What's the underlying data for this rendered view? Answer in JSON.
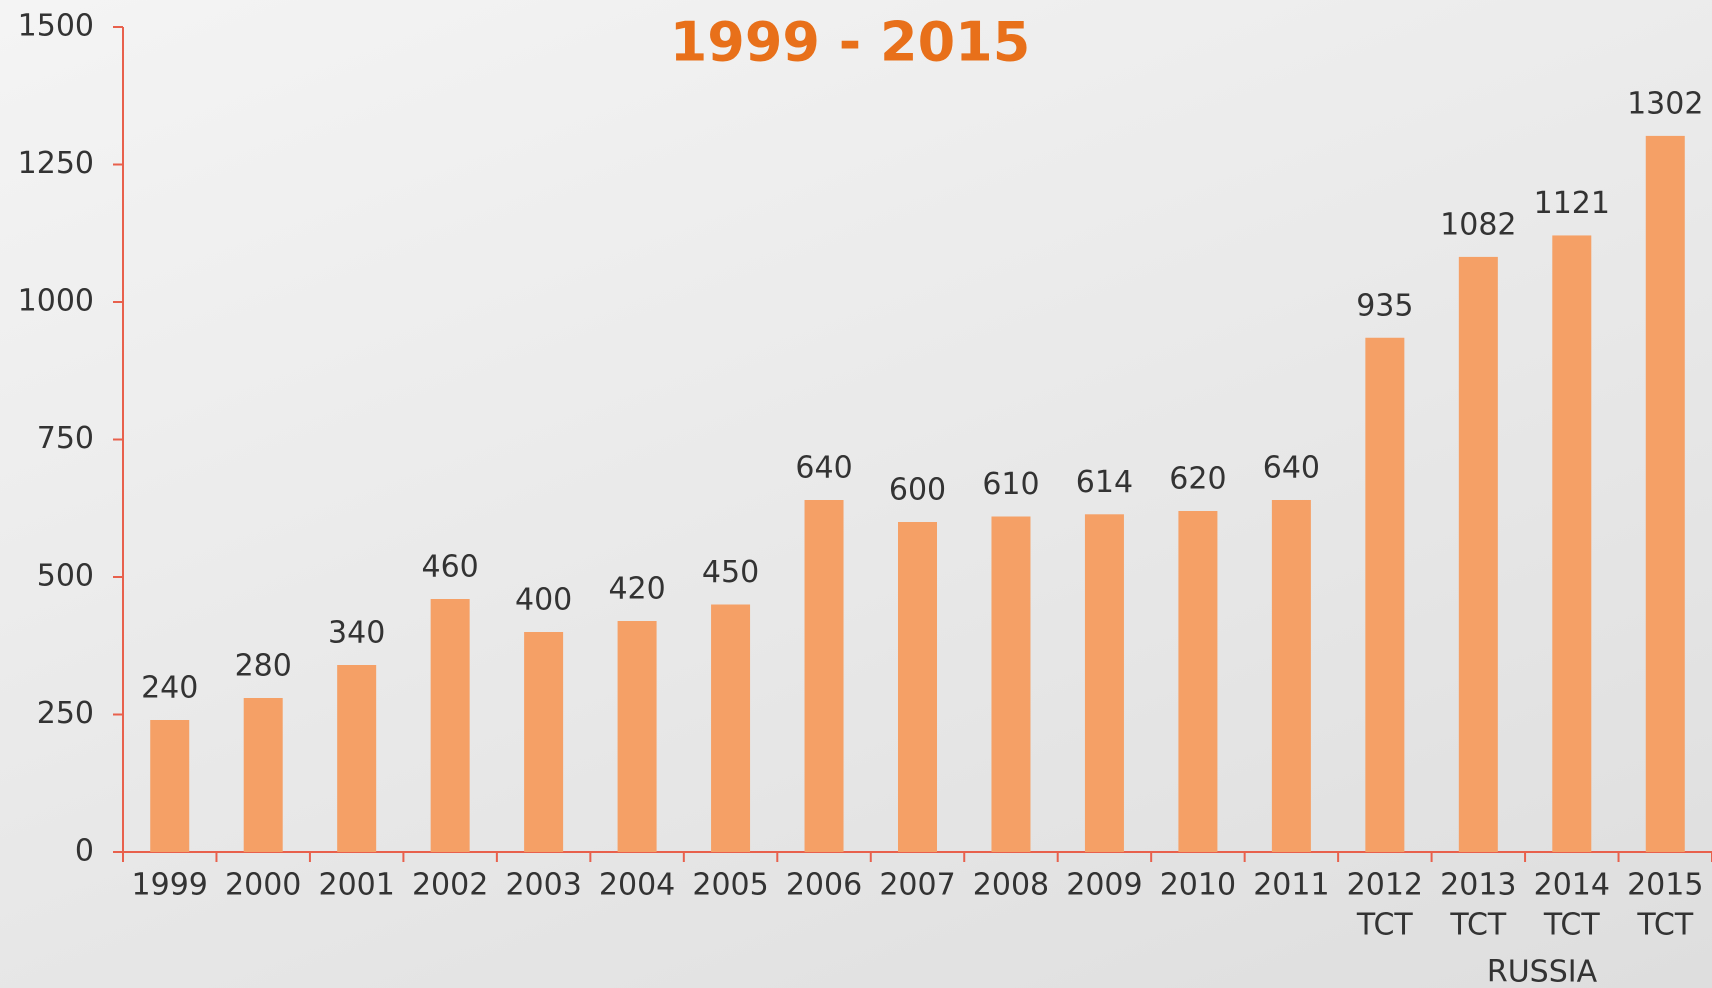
{
  "chart_data": {
    "type": "bar",
    "title": "1999 - 2015",
    "categories": [
      [
        "1999"
      ],
      [
        "2000"
      ],
      [
        "2001"
      ],
      [
        "2002"
      ],
      [
        "2003"
      ],
      [
        "2004"
      ],
      [
        "2005"
      ],
      [
        "2006"
      ],
      [
        "2007"
      ],
      [
        "2008"
      ],
      [
        "2009"
      ],
      [
        "2010"
      ],
      [
        "2011"
      ],
      [
        "2012",
        "TCT"
      ],
      [
        "2013",
        "TCT"
      ],
      [
        "2014",
        "TCT"
      ],
      [
        "2015",
        "TCT"
      ]
    ],
    "values": [
      240,
      280,
      340,
      460,
      400,
      420,
      450,
      640,
      600,
      610,
      614,
      620,
      640,
      935,
      1082,
      1121,
      1302
    ],
    "color": "#f5a066",
    "ylim": [
      0,
      1500
    ],
    "yticks": [
      0,
      250,
      500,
      750,
      1000,
      1250,
      1500
    ],
    "annotation": "RUSSIA"
  }
}
